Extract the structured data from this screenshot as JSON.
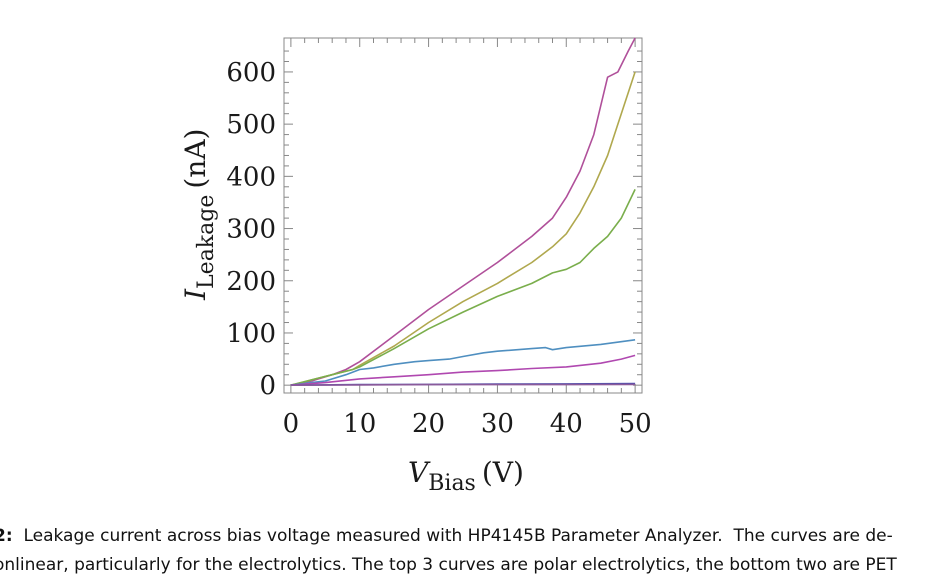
{
  "chart_data": {
    "type": "line",
    "xlabel_main": "V",
    "xlabel_sub": "Bias",
    "xlabel_unit": "(V)",
    "ylabel_main": "I",
    "ylabel_sub": "Leakage",
    "ylabel_unit": "(nA)",
    "xlim": [
      -1,
      51
    ],
    "ylim": [
      -15,
      665
    ],
    "xticks": [
      0,
      10,
      20,
      30,
      40,
      50
    ],
    "yticks": [
      0,
      100,
      200,
      300,
      400,
      500,
      600
    ],
    "grid": false,
    "series": [
      {
        "color": "#b0509a",
        "points": [
          [
            0,
            0
          ],
          [
            3,
            8
          ],
          [
            6,
            20
          ],
          [
            8,
            30
          ],
          [
            10,
            45
          ],
          [
            15,
            95
          ],
          [
            20,
            145
          ],
          [
            25,
            190
          ],
          [
            30,
            235
          ],
          [
            35,
            285
          ],
          [
            38,
            320
          ],
          [
            40,
            360
          ],
          [
            42,
            410
          ],
          [
            44,
            480
          ],
          [
            46,
            590
          ],
          [
            47.5,
            600
          ],
          [
            49,
            640
          ],
          [
            50,
            665
          ]
        ]
      },
      {
        "color": "#b0a84e",
        "points": [
          [
            0,
            0
          ],
          [
            3,
            10
          ],
          [
            6,
            20
          ],
          [
            9,
            30
          ],
          [
            10,
            38
          ],
          [
            15,
            75
          ],
          [
            20,
            120
          ],
          [
            25,
            160
          ],
          [
            30,
            195
          ],
          [
            35,
            235
          ],
          [
            38,
            265
          ],
          [
            40,
            290
          ],
          [
            42,
            330
          ],
          [
            44,
            380
          ],
          [
            46,
            440
          ],
          [
            48,
            520
          ],
          [
            50,
            600
          ]
        ]
      },
      {
        "color": "#7aae4c",
        "points": [
          [
            0,
            0
          ],
          [
            3,
            10
          ],
          [
            6,
            20
          ],
          [
            9,
            30
          ],
          [
            10,
            35
          ],
          [
            15,
            70
          ],
          [
            20,
            108
          ],
          [
            25,
            140
          ],
          [
            30,
            170
          ],
          [
            35,
            195
          ],
          [
            38,
            215
          ],
          [
            40,
            222
          ],
          [
            42,
            235
          ],
          [
            44,
            262
          ],
          [
            46,
            285
          ],
          [
            48,
            320
          ],
          [
            50,
            375
          ]
        ]
      },
      {
        "color": "#4f8fc0",
        "points": [
          [
            0,
            0
          ],
          [
            3,
            5
          ],
          [
            5,
            8
          ],
          [
            8,
            20
          ],
          [
            10,
            30
          ],
          [
            12,
            33
          ],
          [
            15,
            40
          ],
          [
            18,
            45
          ],
          [
            20,
            47
          ],
          [
            23,
            50
          ],
          [
            25,
            55
          ],
          [
            28,
            62
          ],
          [
            30,
            65
          ],
          [
            35,
            70
          ],
          [
            37,
            72
          ],
          [
            38,
            68
          ],
          [
            40,
            72
          ],
          [
            45,
            78
          ],
          [
            50,
            87
          ]
        ]
      },
      {
        "color": "#b048b0",
        "points": [
          [
            0,
            0
          ],
          [
            5,
            5
          ],
          [
            10,
            12
          ],
          [
            15,
            16
          ],
          [
            20,
            20
          ],
          [
            25,
            25
          ],
          [
            30,
            28
          ],
          [
            35,
            32
          ],
          [
            40,
            35
          ],
          [
            45,
            42
          ],
          [
            48,
            50
          ],
          [
            50,
            57
          ]
        ]
      },
      {
        "color": "#4a4eb0",
        "points": [
          [
            0,
            0
          ],
          [
            10,
            1
          ],
          [
            20,
            1.5
          ],
          [
            30,
            2
          ],
          [
            40,
            2.5
          ],
          [
            50,
            3
          ]
        ]
      },
      {
        "color": "#8a5a9a",
        "points": [
          [
            0,
            0
          ],
          [
            10,
            0.5
          ],
          [
            20,
            1
          ],
          [
            30,
            1
          ],
          [
            40,
            1
          ],
          [
            50,
            1.5
          ]
        ]
      }
    ]
  },
  "caption": {
    "line1_label": "2:",
    "line1_text": "  Leakage current across bias voltage measured with HP4145B Parameter Analyzer.  The curves are de-",
    "line2_text": "onlinear, particularly for the electrolytics.  The top 3 curves are polar electrolytics, the bottom two are PET"
  }
}
